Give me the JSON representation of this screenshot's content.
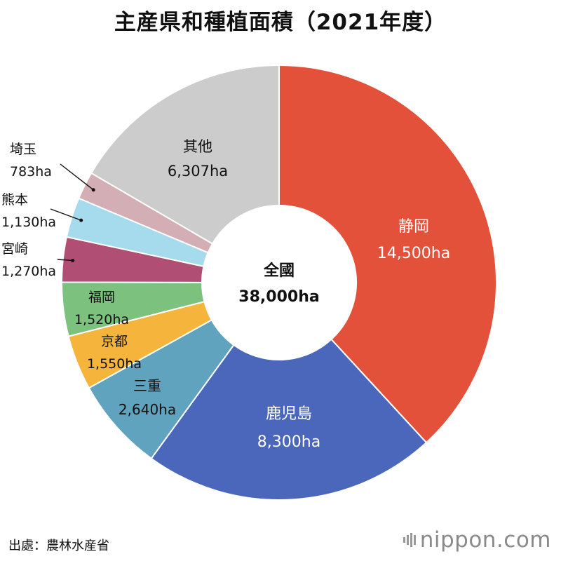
{
  "title": "主産県和種植面積（2021年度）",
  "chart_data": {
    "type": "pie",
    "style": "donut",
    "center_label": "全國",
    "center_value": "38,000ha",
    "slices": [
      {
        "name": "静岡",
        "label": "14,500ha",
        "value": 14500,
        "color": "#e4513a"
      },
      {
        "name": "鹿児島",
        "label": "8,300ha",
        "value": 8300,
        "color": "#4a67bb"
      },
      {
        "name": "三重",
        "label": "2,640ha",
        "value": 2640,
        "color": "#5fa3bf"
      },
      {
        "name": "京都",
        "label": "1,550ha",
        "value": 1550,
        "color": "#f5b43c"
      },
      {
        "name": "福岡",
        "label": "1,520ha",
        "value": 1520,
        "color": "#7cc27e"
      },
      {
        "name": "宮崎",
        "label": "1,270ha",
        "value": 1270,
        "color": "#b14e74"
      },
      {
        "name": "熊本",
        "label": "1,130ha",
        "value": 1130,
        "color": "#a6dbed"
      },
      {
        "name": "埼玉",
        "label": "783ha",
        "value": 783,
        "color": "#d3aeb5"
      },
      {
        "name": "其他",
        "label": "6,307ha",
        "value": 6307,
        "color": "#cccccc"
      }
    ]
  },
  "source": "出處：農林水産省",
  "logo": "nippon.com"
}
